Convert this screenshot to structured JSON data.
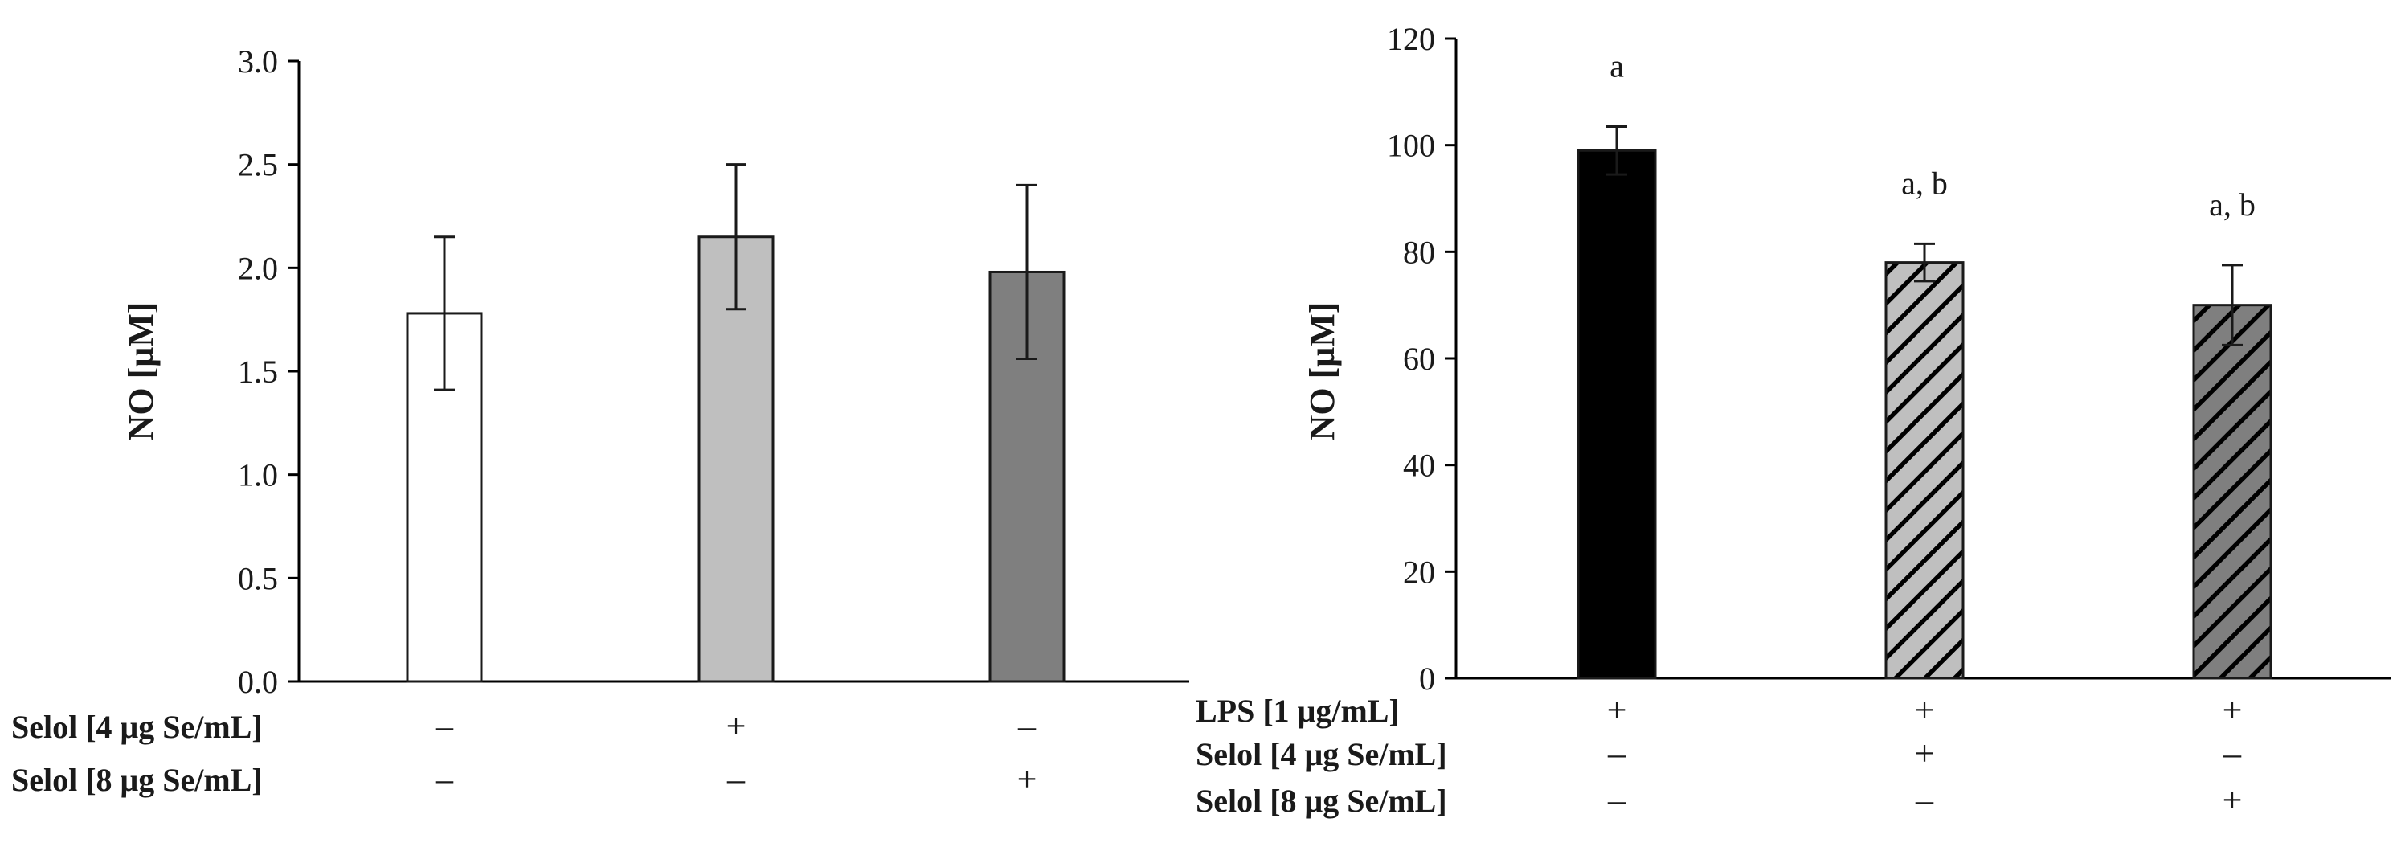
{
  "chart_data": [
    {
      "type": "bar",
      "ylabel": "NO [μM]",
      "ylim": [
        0,
        3.0
      ],
      "yticks": [
        0.0,
        0.5,
        1.0,
        1.5,
        2.0,
        2.5,
        3.0
      ],
      "ytick_labels": [
        "0.0",
        "0.5",
        "1.0",
        "1.5",
        "2.0",
        "2.5",
        "3.0"
      ],
      "values": [
        1.78,
        2.15,
        1.98
      ],
      "errors": [
        0.37,
        0.35,
        0.42
      ],
      "fills": [
        "#ffffff",
        "#bfbfbf",
        "#7f7f7f"
      ],
      "hatched": [
        false,
        false,
        false
      ],
      "annotations": [
        "",
        "",
        ""
      ],
      "conditions": [
        {
          "label": "Selol  [4 μg Se/mL]",
          "signs": [
            "–",
            "+",
            "–"
          ]
        },
        {
          "label": "Selol  [8 μg Se/mL]",
          "signs": [
            "–",
            "–",
            "+"
          ]
        }
      ]
    },
    {
      "type": "bar",
      "ylabel": "NO [μM]",
      "ylim": [
        0,
        120
      ],
      "yticks": [
        0,
        20,
        40,
        60,
        80,
        100,
        120
      ],
      "ytick_labels": [
        "0",
        "20",
        "40",
        "60",
        "80",
        "100",
        "120"
      ],
      "values": [
        99,
        78,
        70
      ],
      "errors": [
        4.5,
        3.5,
        7.5
      ],
      "fills": [
        "#000000",
        "#bfbfbf",
        "#7f7f7f"
      ],
      "hatched": [
        false,
        true,
        true
      ],
      "annotations": [
        "a",
        "a, b",
        "a, b"
      ],
      "conditions": [
        {
          "label": "LPS [1 μg/mL]",
          "signs": [
            "+",
            "+",
            "+"
          ]
        },
        {
          "label": "Selol [4 μg Se/mL]",
          "signs": [
            "–",
            "+",
            "–"
          ]
        },
        {
          "label": "Selol [8 μg Se/mL]",
          "signs": [
            "–",
            "–",
            "+"
          ]
        }
      ]
    }
  ]
}
